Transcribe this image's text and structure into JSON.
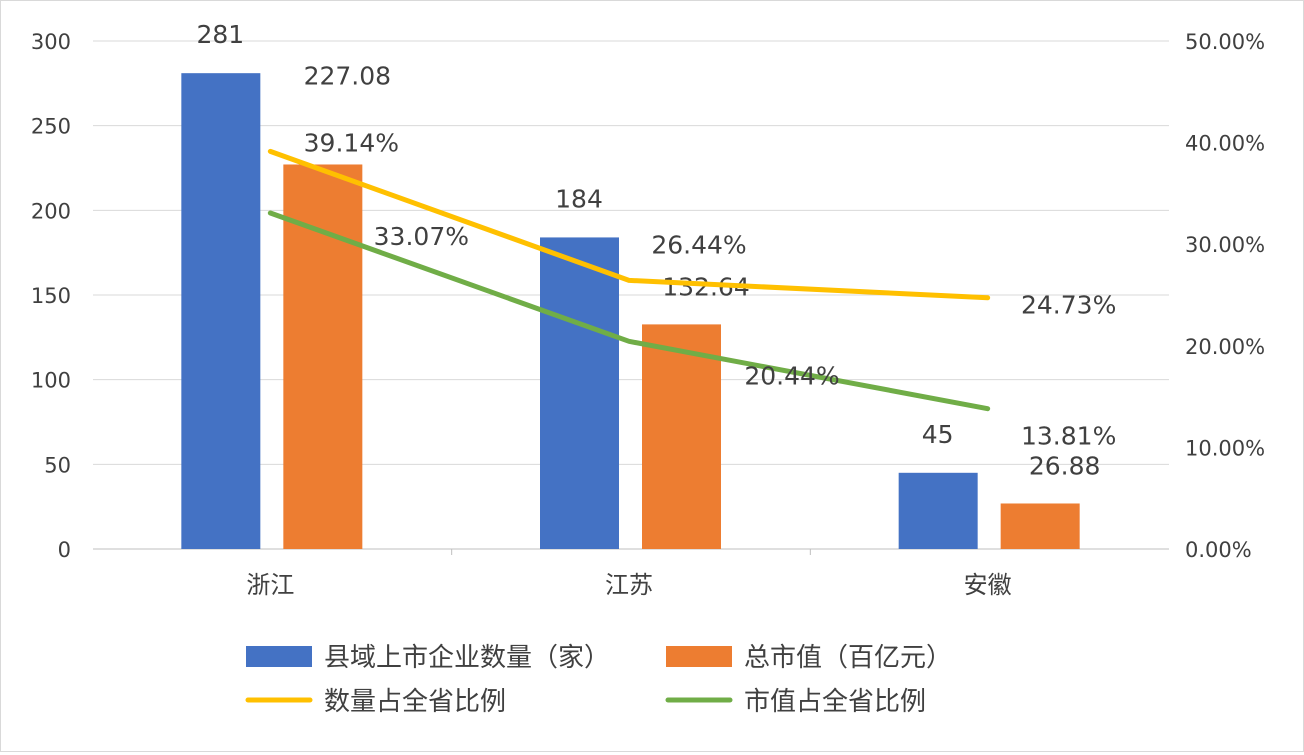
{
  "chart_data": {
    "type": "bar",
    "categories": [
      "浙江",
      "江苏",
      "安徽"
    ],
    "series": [
      {
        "name": "县域上市企业数量（家）",
        "kind": "bar",
        "axis": "left",
        "color": "#4472C4",
        "values": [
          281,
          184,
          45
        ],
        "labels": [
          "281",
          "184",
          "45"
        ]
      },
      {
        "name": "总市值（百亿元）",
        "kind": "bar",
        "axis": "left",
        "color": "#ED7D31",
        "values": [
          227.08,
          132.64,
          26.88
        ],
        "labels": [
          "227.08",
          "132.64",
          "26.88"
        ]
      },
      {
        "name": "数量占全省比例",
        "kind": "line",
        "axis": "right",
        "color": "#FFC000",
        "values": [
          39.14,
          26.44,
          24.73
        ],
        "labels": [
          "39.14%",
          "26.44%",
          "24.73%"
        ]
      },
      {
        "name": "市值占全省比例",
        "kind": "line",
        "axis": "right",
        "color": "#70AD47",
        "values": [
          33.07,
          20.44,
          13.81
        ],
        "labels": [
          "33.07%",
          "20.44%",
          "13.81%"
        ]
      }
    ],
    "y_left": {
      "range": [
        0,
        300
      ],
      "ticks": [
        "0",
        "50",
        "100",
        "150",
        "200",
        "250",
        "300"
      ]
    },
    "y_right": {
      "range": [
        0,
        50
      ],
      "ticks": [
        "0.00%",
        "10.00%",
        "20.00%",
        "30.00%",
        "40.00%",
        "50.00%"
      ]
    },
    "grid": true,
    "legend": "bottom"
  }
}
